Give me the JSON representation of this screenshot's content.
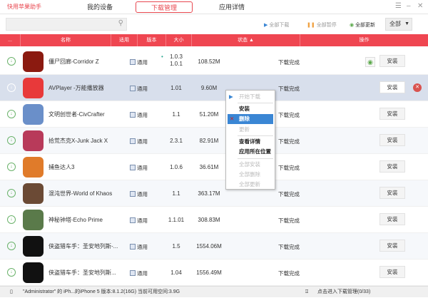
{
  "titlebar": {
    "logo": "快用苹果助手",
    "tabs": [
      "我的设备",
      "下载管理",
      "应用详情"
    ],
    "active_tab": 1
  },
  "toolbar": {
    "search_placeholder": "",
    "download_all": "全部下载",
    "pause_all": "全部暂停",
    "update_all": "全部更新",
    "filter": "全部"
  },
  "header": {
    "check": "...",
    "name": "名称",
    "compat": "适用",
    "version": "版本",
    "size": "大小",
    "status": "状态 ▲",
    "action": "操作"
  },
  "rows": [
    {
      "name": "僵尸回廊-Corridor Z",
      "compat": "通用",
      "version": "1.0.3",
      "version2": "1.0.1",
      "size": "108.52M",
      "status": "下载完成",
      "action": "安装",
      "color": "#8b1a10"
    },
    {
      "name": "AVPlayer -万能播放器",
      "compat": "通用",
      "version": "1.01",
      "size": "9.60M",
      "status": "下载完成",
      "action": "安装",
      "color": "#e8393a"
    },
    {
      "name": "文明创世者-CivCrafter",
      "compat": "通用",
      "version": "1.1",
      "size": "51.20M",
      "status": "下载完成",
      "action": "安装",
      "color": "#6a8fc9"
    },
    {
      "name": "拾荒杰克X-Junk Jack X",
      "compat": "通用",
      "version": "2.3.1",
      "size": "82.91M",
      "status": "下载完成",
      "action": "安装",
      "color": "#b83a5a"
    },
    {
      "name": "捕鱼达人3",
      "compat": "通用",
      "version": "1.0.6",
      "size": "36.61M",
      "status": "下载完成",
      "action": "安装",
      "color": "#e07b2a"
    },
    {
      "name": "混沌世界-World of Khaos",
      "compat": "通用",
      "version": "1.1",
      "size": "363.17M",
      "status": "下载完成",
      "action": "安装",
      "color": "#6b4a35"
    },
    {
      "name": "神秘钟塔-Echo Prime",
      "compat": "通用",
      "version": "1.1.01",
      "size": "308.83M",
      "status": "下载完成",
      "action": "安装",
      "color": "#5a7a4a"
    },
    {
      "name": "侠盗猎车手：圣安地列斯-...",
      "compat": "通用",
      "version": "1.5",
      "size": "1554.06M",
      "status": "下载完成",
      "action": "安装",
      "color": "#111111"
    },
    {
      "name": "侠盗猎车手：圣安地列斯...",
      "compat": "通用",
      "version": "1.04",
      "size": "1556.49M",
      "status": "下载完成",
      "action": "安装",
      "color": "#111111"
    }
  ],
  "context_menu": [
    "开始下载",
    "安装",
    "删除",
    "更新",
    "查看详情",
    "应用所在位置",
    "全部安装",
    "全部删除",
    "全部更新"
  ],
  "statusbar": {
    "device": "\"Administrator\" 的 iPh...的iPhone 5  版本:8.1.2(16G) 当前可用空间:3.9G",
    "download_link": "点击进入下载管理(0/33)"
  },
  "colors": {
    "accent": "#ef4651",
    "selected_row": "#d8dfec",
    "menu_highlight": "#3a86d4"
  }
}
